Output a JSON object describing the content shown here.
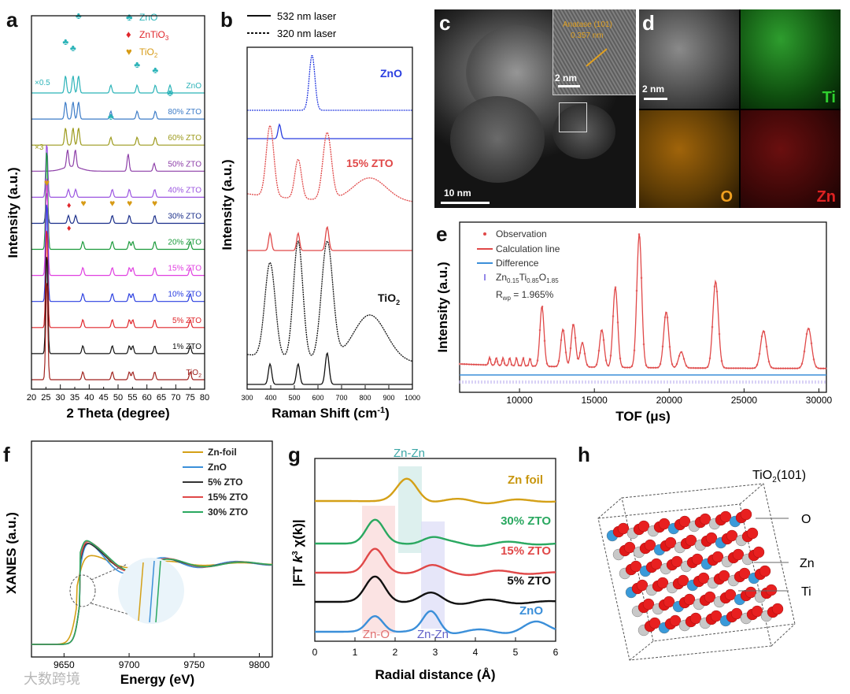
{
  "panel_labels": {
    "a": "a",
    "b": "b",
    "c": "c",
    "d": "d",
    "e": "e",
    "f": "f",
    "g": "g",
    "h": "h"
  },
  "panel_a": {
    "legend": [
      {
        "sym": "♣",
        "label": "ZnO",
        "color": "#2bb3b8"
      },
      {
        "sym": "♦",
        "label": "ZnTiO3",
        "color": "#e0262b"
      },
      {
        "sym": "♥",
        "label": "TiO2",
        "color": "#d79b16"
      }
    ],
    "scale_notes": [
      "×0.5",
      "×3"
    ],
    "xlabel": "2 Theta (degree)",
    "ylabel": "Intensity (a.u.)",
    "xticks": [
      "20",
      "25",
      "30",
      "35",
      "40",
      "45",
      "50",
      "55",
      "60",
      "65",
      "70",
      "75",
      "80"
    ]
  },
  "chart_data": [
    {
      "type": "line",
      "title": "",
      "xlabel": "2 Theta (degree)",
      "ylabel": "Intensity (a.u.)",
      "xlim": [
        20,
        80
      ],
      "series": [
        {
          "name": "ZnO",
          "color": "#2bb3b8",
          "peaks": [
            31.8,
            34.4,
            36.3,
            47.5,
            56.6,
            62.9,
            68.0
          ]
        },
        {
          "name": "80% ZTO",
          "color": "#3d7cc7",
          "peaks": [
            31.8,
            34.4,
            36.3,
            47.5,
            56.6,
            62.9
          ]
        },
        {
          "name": "60% ZTO",
          "color": "#9c9a1c",
          "peaks": [
            31.8,
            34.4,
            36.3,
            47.5,
            56.6,
            62.9
          ]
        },
        {
          "name": "50% ZTO",
          "color": "#8d3fa8",
          "peaks": [
            32.5,
            35.2,
            53.5,
            62.5
          ]
        },
        {
          "name": "40% ZTO",
          "color": "#9b55e0",
          "peaks": [
            25.3,
            32.8,
            35.3,
            48.0,
            53.9,
            62.7
          ]
        },
        {
          "name": "30% ZTO",
          "color": "#1a2e8a",
          "peaks": [
            25.3,
            32.8,
            35.3,
            48.0,
            53.9,
            62.7
          ]
        },
        {
          "name": "20% ZTO",
          "color": "#1a9a3a",
          "peaks": [
            25.3,
            37.8,
            48.0,
            53.9,
            55.1,
            62.7,
            75.0
          ]
        },
        {
          "name": "15% ZTO",
          "color": "#e040e0",
          "peaks": [
            25.3,
            37.8,
            48.0,
            53.9,
            55.1,
            62.7,
            75.0
          ]
        },
        {
          "name": "10% ZTO",
          "color": "#2a3ee0",
          "peaks": [
            25.3,
            37.8,
            48.0,
            53.9,
            55.1,
            62.7,
            75.0
          ]
        },
        {
          "name": "5% ZTO",
          "color": "#e0262b",
          "peaks": [
            25.3,
            37.8,
            48.0,
            53.9,
            55.1,
            62.7,
            75.0
          ]
        },
        {
          "name": "1% ZTO",
          "color": "#111111",
          "peaks": [
            25.3,
            37.8,
            48.0,
            53.9,
            55.1,
            62.7,
            75.0
          ]
        },
        {
          "name": "TiO2",
          "color": "#a0221e",
          "peaks": [
            25.3,
            37.8,
            48.0,
            53.9,
            55.1,
            62.7,
            75.0
          ]
        }
      ]
    },
    {
      "type": "line",
      "xlabel": "Raman Shift (cm-1)",
      "ylabel": "Intensity (a.u.)",
      "xlim": [
        300,
        1000
      ],
      "legend": [
        "532 nm laser",
        "320 nm laser"
      ],
      "xticks": [
        "300",
        "400",
        "500",
        "600",
        "700",
        "800",
        "900",
        "1000"
      ],
      "series": [
        {
          "name": "ZnO (320 nm)",
          "color": "#2a3ee0",
          "style": "dashed",
          "peaks": [
            575
          ]
        },
        {
          "name": "ZnO (532 nm)",
          "color": "#2a3ee0",
          "style": "solid",
          "peaks": [
            437
          ]
        },
        {
          "name": "15% ZTO (320 nm)",
          "color": "#e04848",
          "style": "dashed",
          "peaks": [
            397,
            516,
            639,
            820
          ]
        },
        {
          "name": "15% ZTO (532 nm)",
          "color": "#e04848",
          "style": "solid",
          "peaks": [
            397,
            516,
            639
          ]
        },
        {
          "name": "TiO2 (320 nm)",
          "color": "#111111",
          "style": "dashed",
          "peaks": [
            397,
            516,
            639,
            820
          ]
        },
        {
          "name": "TiO2 (532 nm)",
          "color": "#111111",
          "style": "solid",
          "peaks": [
            397,
            516,
            639
          ]
        }
      ]
    },
    {
      "type": "line",
      "xlabel": "TOF (μs)",
      "ylabel": "Intensity (a.u.)",
      "xlim": [
        6000,
        30500
      ],
      "xticks": [
        "10000",
        "15000",
        "20000",
        "25000",
        "30000"
      ],
      "legend": [
        "Observation",
        "Calculation line",
        "Difference",
        "Zn0.15Ti0.85O1.85"
      ],
      "annotation": "Rwp = 1.965%",
      "peaks": [
        {
          "x": 11500,
          "h": 0.45
        },
        {
          "x": 12900,
          "h": 0.28
        },
        {
          "x": 13600,
          "h": 0.32
        },
        {
          "x": 14200,
          "h": 0.18
        },
        {
          "x": 15500,
          "h": 0.28
        },
        {
          "x": 16400,
          "h": 0.6
        },
        {
          "x": 18000,
          "h": 1.0
        },
        {
          "x": 19800,
          "h": 0.42
        },
        {
          "x": 20800,
          "h": 0.12
        },
        {
          "x": 23100,
          "h": 0.65
        },
        {
          "x": 26300,
          "h": 0.28
        },
        {
          "x": 29300,
          "h": 0.3
        }
      ]
    },
    {
      "type": "line",
      "xlabel": "Energy (eV)",
      "ylabel": "XANES (a.u.)",
      "xlim": [
        9625,
        9810
      ],
      "xticks": [
        "9650",
        "9700",
        "9750",
        "9800"
      ],
      "series": [
        {
          "name": "Zn-foil",
          "color": "#d4a017"
        },
        {
          "name": "ZnO",
          "color": "#3b8fd9"
        },
        {
          "name": "5% ZTO",
          "color": "#333333"
        },
        {
          "name": "15% ZTO",
          "color": "#e04848"
        },
        {
          "name": "30% ZTO",
          "color": "#2aa860"
        }
      ]
    },
    {
      "type": "line",
      "xlabel": "Radial distance (Å)",
      "ylabel": "|FT k3 χ(k)|",
      "xlim": [
        0,
        6
      ],
      "xticks": [
        "0",
        "1",
        "2",
        "3",
        "4",
        "5",
        "6"
      ],
      "series": [
        {
          "name": "Zn foil",
          "color": "#d4a017",
          "peaks": [
            2.3
          ]
        },
        {
          "name": "30% ZTO",
          "color": "#2aa860",
          "peaks": [
            1.5,
            2.9
          ]
        },
        {
          "name": "15% ZTO",
          "color": "#e04848",
          "peaks": [
            1.5,
            2.9
          ]
        },
        {
          "name": "5% ZTO",
          "color": "#111111",
          "peaks": [
            1.5,
            2.9
          ]
        },
        {
          "name": "ZnO",
          "color": "#3b8fd9",
          "peaks": [
            1.5,
            2.9,
            5.5
          ]
        }
      ],
      "regions": [
        "Zn-O",
        "Zn-Zn",
        "Zn-Zn"
      ]
    }
  ],
  "panel_b": {
    "legend": [
      "532 nm laser",
      "320 nm laser"
    ],
    "labels": [
      "ZnO",
      "15% ZTO",
      "TiO2"
    ],
    "xlabel": "Raman Shift (cm-1)",
    "ylabel": "Intensity (a.u.)"
  },
  "panel_c": {
    "inset_text_1": "Anatase (101)",
    "inset_text_2": "0.357 nm",
    "scale_inset": "2 nm",
    "scale_main": "10 nm"
  },
  "panel_d": {
    "scale": "2 nm",
    "maps": [
      "Ti",
      "O",
      "Zn"
    ]
  },
  "panel_e": {
    "legend": [
      "Observation",
      "Calculation line",
      "Difference",
      "Zn0.15Ti0.85O1.85"
    ],
    "rwp": "Rwp = 1.965%",
    "xlabel": "TOF (μs)",
    "ylabel": "Intensity (a.u.)"
  },
  "panel_f": {
    "legend": [
      "Zn-foil",
      "ZnO",
      "5% ZTO",
      "15% ZTO",
      "30% ZTO"
    ],
    "xlabel": "Energy (eV)",
    "ylabel": "XANES (a.u.)"
  },
  "panel_g": {
    "labels": [
      "Zn-Zn",
      "Zn foil",
      "30% ZTO",
      "15% ZTO",
      "5% ZTO",
      "ZnO",
      "Zn-O",
      "Zn-Zn"
    ],
    "xlabel": "Radial distance (Å)",
    "ylabel": "|FT k3 χ(k)|"
  },
  "panel_h": {
    "title": "TiO2(101)",
    "atoms": [
      "O",
      "Zn",
      "Ti"
    ]
  },
  "watermark": "大数跨境"
}
